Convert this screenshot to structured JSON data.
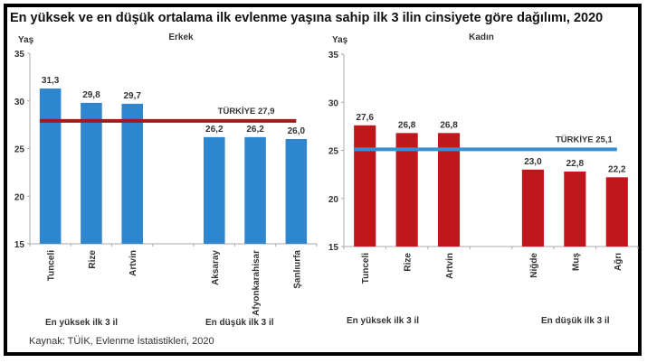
{
  "title": "En yüksek ve en düşük ortalama ilk evlenme yaşına sahip ilk 3 ilin cinsiyete göre dağılımı, 2020",
  "source": "Kaynak: TÜİK, Evlenme İstatistikleri, 2020",
  "chart_data": [
    {
      "type": "bar",
      "title": "Erkek",
      "ylabel": "Yaş",
      "ylim": [
        15,
        35
      ],
      "yticks": [
        15,
        20,
        25,
        30,
        35
      ],
      "grid": false,
      "color": "#2e86cf",
      "categories": [
        "Tunceli",
        "Rize",
        "Artvin",
        "",
        "Aksaray",
        "Afyonkarahisar",
        "Şanlıurfa"
      ],
      "values": [
        31.3,
        29.8,
        29.7,
        null,
        26.2,
        26.2,
        26.0
      ],
      "data_labels": [
        "31,3",
        "29,8",
        "29,7",
        "",
        "26,2",
        "26,2",
        "26,0"
      ],
      "reference_line": {
        "label": "TÜRKİYE  27,9",
        "value": 27.9,
        "color": "#a01c1c"
      },
      "group_labels": [
        "En yüksek ilk 3 il",
        "En düşük ilk 3 il"
      ]
    },
    {
      "type": "bar",
      "title": "Kadın",
      "ylabel": "Yaş",
      "ylim": [
        15,
        35
      ],
      "yticks": [
        15,
        20,
        25,
        30,
        35
      ],
      "grid": false,
      "color": "#c0171c",
      "categories": [
        "Tunceli",
        "Rize",
        "Artvin",
        "",
        "Niğde",
        "Muş",
        "Ağrı"
      ],
      "values": [
        27.6,
        26.8,
        26.8,
        null,
        23.0,
        22.8,
        22.2
      ],
      "data_labels": [
        "27,6",
        "26,8",
        "26,8",
        "",
        "23,0",
        "22,8",
        "22,2"
      ],
      "reference_line": {
        "label": "TÜRKİYE  25,1",
        "value": 25.1,
        "color": "#3a8fd0"
      },
      "group_labels": [
        "En yüksek ilk 3 il",
        "En düşük ilk 3 il"
      ]
    }
  ]
}
